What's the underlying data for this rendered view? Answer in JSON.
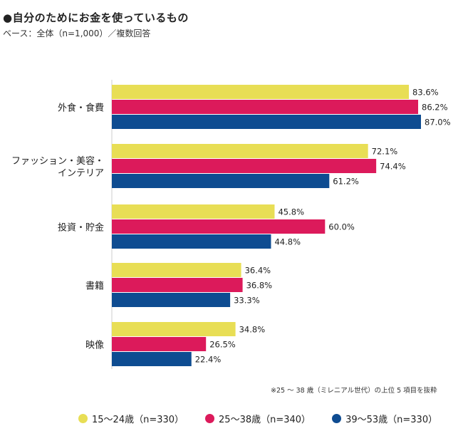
{
  "header": {
    "title": "●自分のためにお金を使っているもの",
    "subtitle": "ベース：全体（n=1,000）／複数回答"
  },
  "note": "※25 〜 38 歳（ミレニアル世代）の上位 5 項目を抜粋",
  "colors": {
    "s1": "#e8de55",
    "s2": "#dc1a5b",
    "s3": "#0e4c91"
  },
  "chart_data": {
    "type": "bar",
    "orientation": "horizontal",
    "categories": [
      [
        "外食・食費"
      ],
      [
        "ファッション・美容・",
        "インテリア"
      ],
      [
        "投資・貯金"
      ],
      [
        "書籍"
      ],
      [
        "映像"
      ]
    ],
    "series": [
      {
        "name": "15〜24歳（n=330）",
        "values": [
          83.6,
          72.1,
          45.8,
          36.4,
          34.8
        ]
      },
      {
        "name": "25〜38歳（n=340）",
        "values": [
          86.2,
          74.4,
          60.0,
          36.8,
          26.5
        ]
      },
      {
        "name": "39〜53歳（n=330）",
        "values": [
          87.0,
          61.2,
          44.8,
          33.3,
          22.4
        ]
      }
    ],
    "value_labels": [
      [
        "83.6%",
        "72.1%",
        "45.8%",
        "36.4%",
        "34.8%"
      ],
      [
        "86.2%",
        "74.4%",
        "60.0%",
        "36.8%",
        "26.5%"
      ],
      [
        "87.0%",
        "61.2%",
        "44.8%",
        "33.3%",
        "22.4%"
      ]
    ],
    "xlim": [
      0,
      100
    ],
    "grid": false,
    "legend_position": "bottom"
  }
}
